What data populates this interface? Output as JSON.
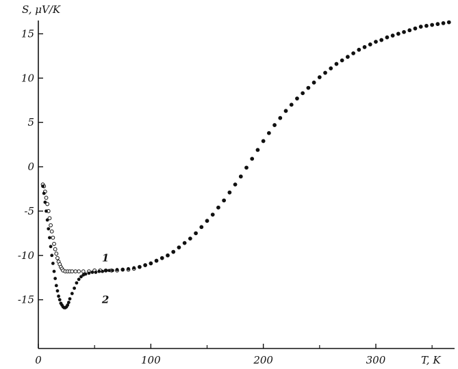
{
  "chart_data": {
    "type": "scatter",
    "ylabel": "S, μV/K",
    "xlabel": "T, K",
    "xlim": [
      0,
      370
    ],
    "ylim": [
      -20.5,
      16.5
    ],
    "x_ticks": [
      {
        "value": 0,
        "label": "0"
      },
      {
        "value": 100,
        "label": "100"
      },
      {
        "value": 200,
        "label": "200"
      },
      {
        "value": 300,
        "label": "300"
      }
    ],
    "y_ticks": [
      {
        "value": 15,
        "label": "15"
      },
      {
        "value": 10,
        "label": "10"
      },
      {
        "value": 5,
        "label": "5"
      },
      {
        "value": 0,
        "label": "0"
      },
      {
        "value": -5,
        "label": "-5"
      },
      {
        "value": -10,
        "label": "-10"
      },
      {
        "value": -15,
        "label": "-15"
      }
    ],
    "grid": false,
    "legend": "none",
    "series": [
      {
        "name": "1",
        "marker": "open-circle",
        "color": "#111111",
        "x": [
          4,
          5,
          6,
          7,
          8,
          9,
          10,
          11,
          12,
          13,
          14,
          15,
          16,
          17,
          18,
          19,
          20,
          21,
          22,
          24,
          26,
          28,
          30,
          33,
          36,
          40,
          45,
          50,
          55,
          60,
          65,
          70,
          75,
          80,
          85,
          90,
          95,
          100,
          105,
          110,
          115,
          120,
          125,
          130,
          135,
          140,
          145,
          150,
          155,
          160,
          165,
          170,
          175,
          180,
          185,
          190,
          195,
          200,
          205,
          210,
          215,
          220,
          225,
          230,
          235,
          240,
          245,
          250,
          255,
          260,
          265,
          270,
          275,
          280,
          285,
          290,
          295,
          300,
          305,
          310,
          315,
          320,
          325,
          330,
          335,
          340,
          345,
          350,
          355,
          360,
          365
        ],
        "y": [
          -2.0,
          -2.2,
          -2.8,
          -3.5,
          -4.2,
          -5.0,
          -5.8,
          -6.6,
          -7.3,
          -8.0,
          -8.7,
          -9.3,
          -9.8,
          -10.3,
          -10.7,
          -11.0,
          -11.3,
          -11.5,
          -11.7,
          -11.8,
          -11.8,
          -11.8,
          -11.8,
          -11.8,
          -11.8,
          -11.8,
          -11.8,
          -11.7,
          -11.7,
          -11.7,
          -11.7,
          -11.7,
          -11.6,
          -11.6,
          -11.5,
          -11.3,
          -11.1,
          -10.9,
          -10.6,
          -10.3,
          -10.0,
          -9.6,
          -9.1,
          -8.6,
          -8.1,
          -7.5,
          -6.8,
          -6.1,
          -5.4,
          -4.6,
          -3.8,
          -2.9,
          -2.0,
          -1.1,
          -0.1,
          0.9,
          1.9,
          2.9,
          3.8,
          4.7,
          5.5,
          6.3,
          7.0,
          7.7,
          8.3,
          8.9,
          9.5,
          10.1,
          10.6,
          11.1,
          11.6,
          12.0,
          12.4,
          12.8,
          13.2,
          13.5,
          13.8,
          14.1,
          14.3,
          14.6,
          14.8,
          15.0,
          15.2,
          15.4,
          15.6,
          15.8,
          15.9,
          16.0,
          16.1,
          16.2,
          16.3
        ]
      },
      {
        "name": "2",
        "marker": "filled-circle",
        "color": "#111111",
        "x": [
          4,
          5,
          6,
          7,
          8,
          9,
          10,
          11,
          12,
          13,
          14,
          15,
          16,
          17,
          18,
          19,
          20,
          21,
          22,
          23,
          24,
          25,
          26,
          27,
          28,
          30,
          32,
          34,
          36,
          38,
          40,
          42,
          45,
          48,
          51,
          54,
          57,
          60,
          63,
          66,
          70,
          75,
          80,
          85,
          90,
          95,
          100,
          105,
          110,
          115,
          120,
          125,
          130,
          135,
          140,
          145,
          150,
          155,
          160,
          165,
          170,
          175,
          180,
          185,
          190,
          195,
          200,
          205,
          210,
          215,
          220,
          225,
          230,
          235,
          240,
          245,
          250,
          255,
          260,
          265,
          270,
          275,
          280,
          285,
          290,
          295,
          300,
          305,
          310,
          315,
          320,
          325,
          330,
          335,
          340,
          345,
          350,
          355,
          360,
          365
        ],
        "y": [
          -2.2,
          -3.0,
          -4.0,
          -5.0,
          -6.0,
          -7.0,
          -8.0,
          -9.0,
          -10.0,
          -10.9,
          -11.8,
          -12.6,
          -13.4,
          -14.0,
          -14.6,
          -15.0,
          -15.4,
          -15.6,
          -15.8,
          -15.9,
          -15.9,
          -15.8,
          -15.6,
          -15.3,
          -14.9,
          -14.3,
          -13.7,
          -13.1,
          -12.7,
          -12.4,
          -12.2,
          -12.1,
          -12.0,
          -11.9,
          -11.9,
          -11.8,
          -11.8,
          -11.7,
          -11.7,
          -11.7,
          -11.6,
          -11.6,
          -11.5,
          -11.4,
          -11.3,
          -11.1,
          -10.9,
          -10.6,
          -10.3,
          -10.0,
          -9.6,
          -9.1,
          -8.6,
          -8.1,
          -7.5,
          -6.8,
          -6.1,
          -5.4,
          -4.6,
          -3.8,
          -2.9,
          -2.0,
          -1.1,
          -0.1,
          0.9,
          1.9,
          2.9,
          3.8,
          4.7,
          5.5,
          6.3,
          7.0,
          7.7,
          8.3,
          8.9,
          9.5,
          10.1,
          10.6,
          11.1,
          11.6,
          12.0,
          12.4,
          12.8,
          13.2,
          13.5,
          13.8,
          14.1,
          14.3,
          14.6,
          14.8,
          15.0,
          15.2,
          15.4,
          15.6,
          15.8,
          15.9,
          16.0,
          16.1,
          16.2,
          16.3
        ]
      }
    ],
    "series_labels": [
      {
        "text": "1",
        "x": 48,
        "y": -10.3
      },
      {
        "text": "2",
        "x": 48,
        "y": -15.0
      }
    ]
  }
}
